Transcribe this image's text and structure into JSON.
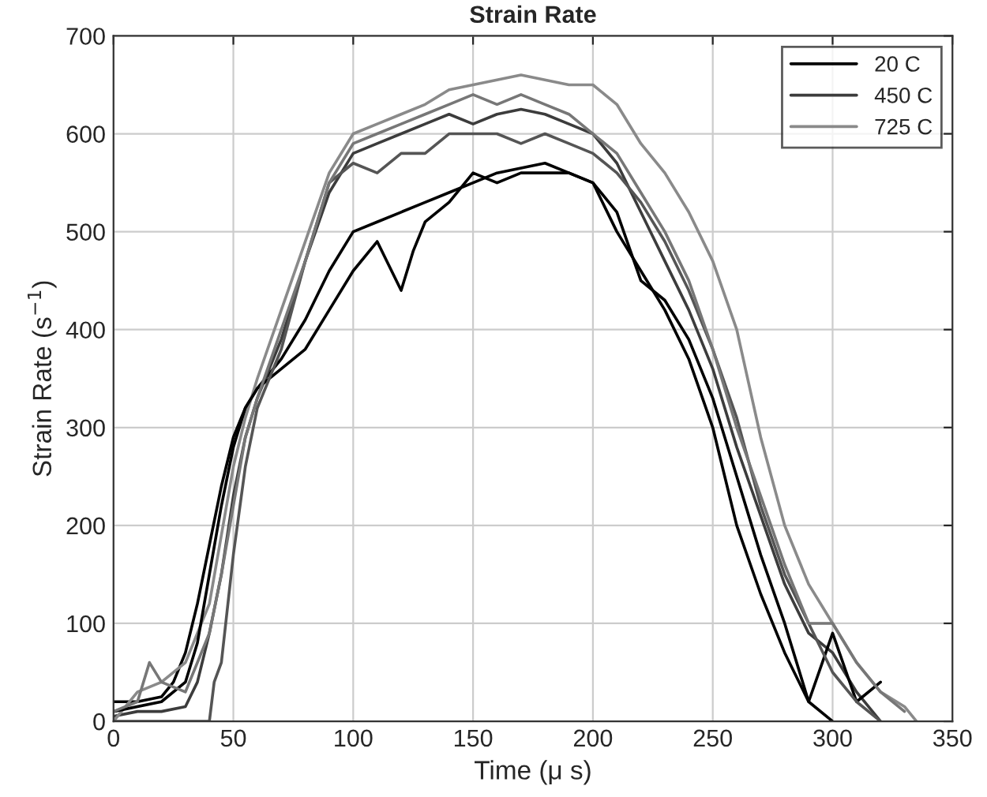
{
  "chart_data": {
    "type": "line",
    "title": "Strain Rate",
    "xlabel": "Time (μ s)",
    "ylabel": "Strain Rate (s$^{−1}$)",
    "xlim": [
      0,
      350
    ],
    "ylim": [
      0,
      700
    ],
    "xticks": [
      0,
      50,
      100,
      150,
      200,
      250,
      300,
      350
    ],
    "yticks": [
      0,
      100,
      200,
      300,
      400,
      500,
      600,
      700
    ],
    "grid": true,
    "legend": "top right",
    "marker": "none",
    "line_style": "solid",
    "series": [
      {
        "name": "20 C",
        "color": "#000000",
        "x": [
          0,
          10,
          20,
          25,
          30,
          35,
          40,
          45,
          50,
          55,
          60,
          70,
          80,
          90,
          100,
          110,
          120,
          130,
          140,
          150,
          160,
          170,
          180,
          190,
          200,
          210,
          220,
          230,
          240,
          250,
          260,
          270,
          280,
          290,
          300
        ],
        "values": [
          20,
          20,
          25,
          40,
          70,
          120,
          180,
          240,
          290,
          320,
          340,
          370,
          410,
          460,
          500,
          510,
          520,
          530,
          540,
          550,
          560,
          565,
          570,
          560,
          550,
          520,
          450,
          430,
          390,
          330,
          250,
          170,
          100,
          20,
          0
        ]
      },
      {
        "name": "450 C",
        "color": "#3c3c3c",
        "x": [
          0,
          10,
          20,
          30,
          35,
          40,
          45,
          50,
          55,
          60,
          70,
          80,
          90,
          100,
          110,
          120,
          130,
          140,
          150,
          160,
          170,
          180,
          190,
          200,
          210,
          220,
          230,
          240,
          250,
          260,
          270,
          280,
          290,
          300,
          310,
          320
        ],
        "values": [
          5,
          10,
          10,
          15,
          40,
          90,
          150,
          230,
          290,
          330,
          390,
          470,
          540,
          580,
          590,
          600,
          610,
          620,
          610,
          620,
          625,
          620,
          610,
          600,
          570,
          520,
          470,
          420,
          360,
          280,
          210,
          140,
          90,
          70,
          30,
          0
        ]
      },
      {
        "name": "725 C",
        "color": "#8a8a8a",
        "x": [
          0,
          10,
          20,
          30,
          40,
          45,
          50,
          55,
          60,
          70,
          80,
          90,
          100,
          110,
          120,
          130,
          140,
          150,
          160,
          170,
          180,
          190,
          200,
          210,
          220,
          230,
          240,
          250,
          260,
          270,
          280,
          290,
          300,
          310,
          320,
          330,
          335
        ],
        "values": [
          0,
          30,
          40,
          60,
          120,
          190,
          260,
          310,
          350,
          420,
          490,
          560,
          600,
          610,
          620,
          630,
          645,
          650,
          655,
          660,
          655,
          650,
          650,
          630,
          590,
          560,
          520,
          470,
          400,
          290,
          200,
          140,
          100,
          60,
          30,
          15,
          0
        ]
      },
      {
        "color": "#000000",
        "x": [
          0,
          20,
          30,
          35,
          40,
          45,
          50,
          55,
          60,
          70,
          80,
          90,
          100,
          110,
          120,
          125,
          130,
          140,
          150,
          160,
          170,
          180,
          190,
          200,
          210,
          220,
          230,
          240,
          250,
          260,
          270,
          280,
          290,
          300,
          310,
          320
        ],
        "values": [
          10,
          20,
          40,
          80,
          150,
          220,
          280,
          320,
          340,
          360,
          380,
          420,
          460,
          490,
          440,
          480,
          510,
          530,
          560,
          550,
          560,
          560,
          560,
          550,
          500,
          460,
          420,
          370,
          300,
          200,
          130,
          70,
          20,
          90,
          20,
          40
        ]
      },
      {
        "color": "#555555",
        "x": [
          0,
          20,
          30,
          40,
          42,
          45,
          50,
          55,
          60,
          70,
          80,
          90,
          100,
          110,
          120,
          130,
          140,
          150,
          160,
          170,
          180,
          190,
          200,
          210,
          220,
          230,
          240,
          250,
          260,
          270,
          280,
          290,
          300,
          310,
          320
        ],
        "values": [
          0,
          0,
          0,
          0,
          40,
          60,
          170,
          260,
          320,
          380,
          470,
          550,
          570,
          560,
          580,
          580,
          600,
          600,
          600,
          590,
          600,
          590,
          580,
          560,
          530,
          490,
          440,
          380,
          310,
          220,
          150,
          100,
          50,
          20,
          0
        ]
      },
      {
        "color": "#777777",
        "x": [
          0,
          10,
          15,
          20,
          30,
          40,
          45,
          50,
          55,
          60,
          70,
          80,
          90,
          100,
          110,
          120,
          130,
          140,
          150,
          160,
          170,
          180,
          190,
          200,
          210,
          220,
          230,
          240,
          250,
          260,
          270,
          280,
          290,
          300,
          310,
          320,
          330
        ],
        "values": [
          10,
          20,
          60,
          40,
          30,
          90,
          150,
          220,
          290,
          330,
          400,
          470,
          550,
          590,
          600,
          610,
          620,
          630,
          640,
          630,
          640,
          630,
          620,
          600,
          580,
          540,
          500,
          450,
          380,
          300,
          230,
          160,
          100,
          100,
          60,
          30,
          10
        ]
      }
    ]
  }
}
